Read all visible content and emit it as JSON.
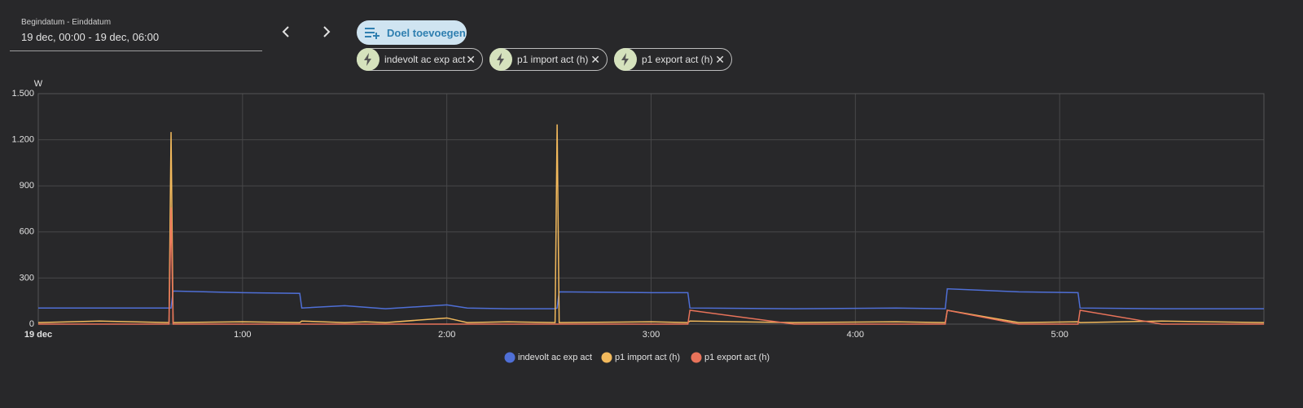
{
  "date_range": {
    "label": "Begindatum - Einddatum",
    "value": "19 dec, 00:00 - 19 dec, 06:00"
  },
  "add_target": "Doel toevoegen",
  "chips": [
    "indevolt ac exp act",
    "p1 import act (h)",
    "p1 export act (h)"
  ],
  "chart_data": {
    "type": "line",
    "y_label": "W",
    "x": [
      0,
      0.3,
      0.64,
      0.65,
      0.66,
      1.0,
      1.28,
      1.29,
      1.5,
      1.6,
      1.7,
      2.0,
      2.1,
      2.3,
      2.53,
      2.54,
      2.55,
      3.0,
      3.18,
      3.19,
      3.7,
      4.2,
      4.44,
      4.45,
      4.8,
      5.09,
      5.1,
      5.5,
      6.0
    ],
    "xlim": [
      0,
      6
    ],
    "xticks": [
      {
        "value": 0,
        "label": "19 dec"
      },
      {
        "value": 1,
        "label": "1:00"
      },
      {
        "value": 2,
        "label": "2:00"
      },
      {
        "value": 3,
        "label": "3:00"
      },
      {
        "value": 4,
        "label": "4:00"
      },
      {
        "value": 5,
        "label": "5:00"
      }
    ],
    "ylim": [
      0,
      1500
    ],
    "yticks": [
      0,
      300,
      600,
      900,
      {
        "value": 1200,
        "label": "1.200"
      },
      {
        "value": 1500,
        "label": "1.500"
      }
    ],
    "grid": true,
    "series": [
      {
        "name": "indevolt ac exp act",
        "color": "#4f6fd6",
        "values": [
          105,
          105,
          105,
          105,
          215,
          205,
          200,
          105,
          120,
          110,
          100,
          125,
          105,
          100,
          100,
          105,
          210,
          205,
          205,
          105,
          100,
          105,
          100,
          230,
          210,
          205,
          105,
          100,
          100
        ]
      },
      {
        "name": "p1 import act (h)",
        "color": "#f2b95c",
        "values": [
          10,
          20,
          10,
          1250,
          10,
          15,
          10,
          20,
          10,
          15,
          10,
          40,
          10,
          15,
          10,
          1300,
          10,
          15,
          10,
          20,
          10,
          15,
          10,
          90,
          10,
          15,
          10,
          20,
          10
        ]
      },
      {
        "name": "p1 export act (h)",
        "color": "#e8735a",
        "values": [
          0,
          0,
          0,
          760,
          0,
          0,
          0,
          0,
          0,
          0,
          0,
          0,
          0,
          0,
          0,
          0,
          0,
          0,
          0,
          90,
          0,
          0,
          0,
          90,
          0,
          0,
          90,
          0,
          0
        ]
      }
    ]
  }
}
